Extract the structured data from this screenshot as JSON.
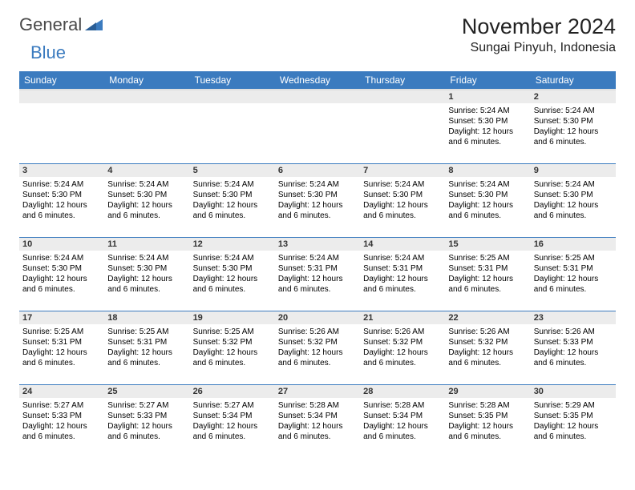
{
  "brand": {
    "part1": "General",
    "part2": "Blue"
  },
  "title": "November 2024",
  "location": "Sungai Pinyuh, Indonesia",
  "colors": {
    "accent": "#3b7bbf",
    "header_bg": "#3b7bbf",
    "header_text": "#ffffff",
    "daynum_bg": "#ececec",
    "row_border": "#3b7bbf",
    "body_text": "#000000"
  },
  "weekdays": [
    "Sunday",
    "Monday",
    "Tuesday",
    "Wednesday",
    "Thursday",
    "Friday",
    "Saturday"
  ],
  "weeks": [
    [
      {
        "day": "",
        "lines": []
      },
      {
        "day": "",
        "lines": []
      },
      {
        "day": "",
        "lines": []
      },
      {
        "day": "",
        "lines": []
      },
      {
        "day": "",
        "lines": []
      },
      {
        "day": "1",
        "lines": [
          "Sunrise: 5:24 AM",
          "Sunset: 5:30 PM",
          "Daylight: 12 hours and 6 minutes."
        ]
      },
      {
        "day": "2",
        "lines": [
          "Sunrise: 5:24 AM",
          "Sunset: 5:30 PM",
          "Daylight: 12 hours and 6 minutes."
        ]
      }
    ],
    [
      {
        "day": "3",
        "lines": [
          "Sunrise: 5:24 AM",
          "Sunset: 5:30 PM",
          "Daylight: 12 hours and 6 minutes."
        ]
      },
      {
        "day": "4",
        "lines": [
          "Sunrise: 5:24 AM",
          "Sunset: 5:30 PM",
          "Daylight: 12 hours and 6 minutes."
        ]
      },
      {
        "day": "5",
        "lines": [
          "Sunrise: 5:24 AM",
          "Sunset: 5:30 PM",
          "Daylight: 12 hours and 6 minutes."
        ]
      },
      {
        "day": "6",
        "lines": [
          "Sunrise: 5:24 AM",
          "Sunset: 5:30 PM",
          "Daylight: 12 hours and 6 minutes."
        ]
      },
      {
        "day": "7",
        "lines": [
          "Sunrise: 5:24 AM",
          "Sunset: 5:30 PM",
          "Daylight: 12 hours and 6 minutes."
        ]
      },
      {
        "day": "8",
        "lines": [
          "Sunrise: 5:24 AM",
          "Sunset: 5:30 PM",
          "Daylight: 12 hours and 6 minutes."
        ]
      },
      {
        "day": "9",
        "lines": [
          "Sunrise: 5:24 AM",
          "Sunset: 5:30 PM",
          "Daylight: 12 hours and 6 minutes."
        ]
      }
    ],
    [
      {
        "day": "10",
        "lines": [
          "Sunrise: 5:24 AM",
          "Sunset: 5:30 PM",
          "Daylight: 12 hours and 6 minutes."
        ]
      },
      {
        "day": "11",
        "lines": [
          "Sunrise: 5:24 AM",
          "Sunset: 5:30 PM",
          "Daylight: 12 hours and 6 minutes."
        ]
      },
      {
        "day": "12",
        "lines": [
          "Sunrise: 5:24 AM",
          "Sunset: 5:30 PM",
          "Daylight: 12 hours and 6 minutes."
        ]
      },
      {
        "day": "13",
        "lines": [
          "Sunrise: 5:24 AM",
          "Sunset: 5:31 PM",
          "Daylight: 12 hours and 6 minutes."
        ]
      },
      {
        "day": "14",
        "lines": [
          "Sunrise: 5:24 AM",
          "Sunset: 5:31 PM",
          "Daylight: 12 hours and 6 minutes."
        ]
      },
      {
        "day": "15",
        "lines": [
          "Sunrise: 5:25 AM",
          "Sunset: 5:31 PM",
          "Daylight: 12 hours and 6 minutes."
        ]
      },
      {
        "day": "16",
        "lines": [
          "Sunrise: 5:25 AM",
          "Sunset: 5:31 PM",
          "Daylight: 12 hours and 6 minutes."
        ]
      }
    ],
    [
      {
        "day": "17",
        "lines": [
          "Sunrise: 5:25 AM",
          "Sunset: 5:31 PM",
          "Daylight: 12 hours and 6 minutes."
        ]
      },
      {
        "day": "18",
        "lines": [
          "Sunrise: 5:25 AM",
          "Sunset: 5:31 PM",
          "Daylight: 12 hours and 6 minutes."
        ]
      },
      {
        "day": "19",
        "lines": [
          "Sunrise: 5:25 AM",
          "Sunset: 5:32 PM",
          "Daylight: 12 hours and 6 minutes."
        ]
      },
      {
        "day": "20",
        "lines": [
          "Sunrise: 5:26 AM",
          "Sunset: 5:32 PM",
          "Daylight: 12 hours and 6 minutes."
        ]
      },
      {
        "day": "21",
        "lines": [
          "Sunrise: 5:26 AM",
          "Sunset: 5:32 PM",
          "Daylight: 12 hours and 6 minutes."
        ]
      },
      {
        "day": "22",
        "lines": [
          "Sunrise: 5:26 AM",
          "Sunset: 5:32 PM",
          "Daylight: 12 hours and 6 minutes."
        ]
      },
      {
        "day": "23",
        "lines": [
          "Sunrise: 5:26 AM",
          "Sunset: 5:33 PM",
          "Daylight: 12 hours and 6 minutes."
        ]
      }
    ],
    [
      {
        "day": "24",
        "lines": [
          "Sunrise: 5:27 AM",
          "Sunset: 5:33 PM",
          "Daylight: 12 hours and 6 minutes."
        ]
      },
      {
        "day": "25",
        "lines": [
          "Sunrise: 5:27 AM",
          "Sunset: 5:33 PM",
          "Daylight: 12 hours and 6 minutes."
        ]
      },
      {
        "day": "26",
        "lines": [
          "Sunrise: 5:27 AM",
          "Sunset: 5:34 PM",
          "Daylight: 12 hours and 6 minutes."
        ]
      },
      {
        "day": "27",
        "lines": [
          "Sunrise: 5:28 AM",
          "Sunset: 5:34 PM",
          "Daylight: 12 hours and 6 minutes."
        ]
      },
      {
        "day": "28",
        "lines": [
          "Sunrise: 5:28 AM",
          "Sunset: 5:34 PM",
          "Daylight: 12 hours and 6 minutes."
        ]
      },
      {
        "day": "29",
        "lines": [
          "Sunrise: 5:28 AM",
          "Sunset: 5:35 PM",
          "Daylight: 12 hours and 6 minutes."
        ]
      },
      {
        "day": "30",
        "lines": [
          "Sunrise: 5:29 AM",
          "Sunset: 5:35 PM",
          "Daylight: 12 hours and 6 minutes."
        ]
      }
    ]
  ]
}
